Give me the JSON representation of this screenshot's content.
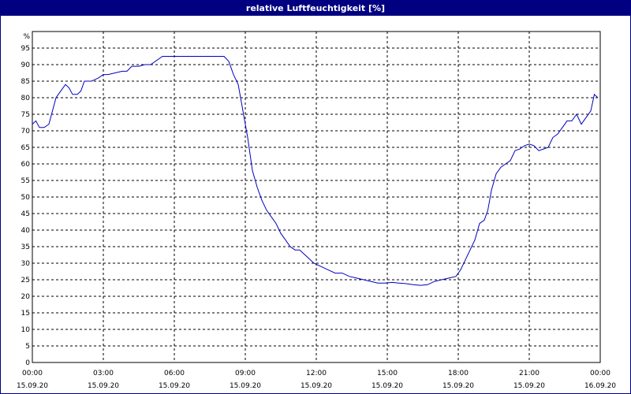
{
  "title": "relative Luftfeuchtigkeit [%]",
  "chart_data": {
    "type": "line",
    "title": "relative Luftfeuchtigkeit [%]",
    "xlabel": "",
    "ylabel": "%",
    "y_unit_label": "%",
    "ylim": [
      0,
      100
    ],
    "yticks": [
      0,
      5,
      10,
      15,
      20,
      25,
      30,
      35,
      40,
      45,
      50,
      55,
      60,
      65,
      70,
      75,
      80,
      85,
      90,
      95
    ],
    "xlim_hours": [
      0,
      24
    ],
    "xticks": [
      {
        "hour": 0,
        "time": "00:00",
        "date": "15.09.20"
      },
      {
        "hour": 3,
        "time": "03:00",
        "date": "15.09.20"
      },
      {
        "hour": 6,
        "time": "06:00",
        "date": "15.09.20"
      },
      {
        "hour": 9,
        "time": "09:00",
        "date": "15.09.20"
      },
      {
        "hour": 12,
        "time": "12:00",
        "date": "15.09.20"
      },
      {
        "hour": 15,
        "time": "15:00",
        "date": "15.09.20"
      },
      {
        "hour": 18,
        "time": "18:00",
        "date": "15.09.20"
      },
      {
        "hour": 21,
        "time": "21:00",
        "date": "15.09.20"
      },
      {
        "hour": 24,
        "time": "00:00",
        "date": "16.09.20"
      }
    ],
    "grid": true,
    "line_color": "#0000c0",
    "series": [
      {
        "x_hours": [
          0.0,
          0.15,
          0.3,
          0.5,
          0.7,
          0.85,
          1.0,
          1.2,
          1.4,
          1.55,
          1.7,
          1.9,
          2.05,
          2.2,
          2.35,
          2.5,
          2.65,
          2.8,
          3.0,
          3.2,
          3.5,
          3.8,
          4.0,
          4.2,
          4.5,
          4.75,
          5.0,
          5.5,
          6.0,
          6.5,
          7.0,
          7.5,
          7.9,
          8.1,
          8.3,
          8.5,
          8.7,
          8.9,
          9.1,
          9.3,
          9.5,
          9.7,
          9.9,
          10.1,
          10.3,
          10.5,
          10.7,
          10.9,
          11.1,
          11.3,
          11.6,
          11.9,
          12.2,
          12.5,
          12.8,
          13.1,
          13.4,
          13.7,
          14.0,
          14.3,
          14.6,
          14.9,
          15.2,
          15.5,
          15.8,
          16.1,
          16.4,
          16.7,
          17.0,
          17.3,
          17.6,
          17.9,
          18.1,
          18.3,
          18.5,
          18.7,
          18.9,
          19.1,
          19.25,
          19.4,
          19.6,
          19.8,
          20.0,
          20.2,
          20.4,
          20.6,
          20.8,
          21.0,
          21.2,
          21.4,
          21.6,
          21.8,
          22.0,
          22.2,
          22.4,
          22.6,
          22.8,
          23.0,
          23.2,
          23.4,
          23.6,
          23.75,
          23.9
        ],
        "y": [
          72,
          73,
          71,
          71,
          72,
          76,
          80,
          82,
          84,
          83,
          81,
          81,
          82,
          85,
          85,
          85,
          85.5,
          86,
          87,
          87,
          87.5,
          88,
          88,
          89.5,
          89.5,
          90,
          90,
          92.5,
          92.5,
          92.5,
          92.5,
          92.5,
          92.5,
          92.5,
          91,
          87,
          84,
          76,
          68,
          58,
          53,
          49,
          46,
          44,
          42,
          39,
          37,
          35,
          34,
          34,
          32,
          30,
          29,
          28,
          27,
          27,
          26,
          25.5,
          25,
          24.5,
          24,
          24,
          24.2,
          24,
          23.8,
          23.5,
          23.3,
          23.5,
          24.5,
          25,
          25.5,
          26,
          28,
          31,
          34,
          37,
          42,
          43,
          46,
          52,
          57,
          59,
          60,
          61,
          64,
          64.5,
          65.5,
          66,
          65.5,
          64,
          64.5,
          65,
          68,
          69,
          71,
          73,
          73,
          75,
          72,
          74,
          76,
          81,
          80
        ]
      }
    ]
  }
}
